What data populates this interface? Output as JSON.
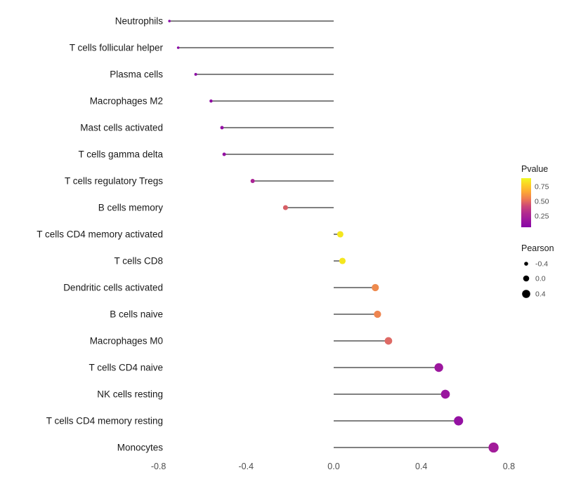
{
  "chart_data": {
    "type": "scatter",
    "subtype": "lollipop",
    "title": "",
    "xlabel": "",
    "ylabel": "",
    "xlim": [
      -0.85,
      0.85
    ],
    "baseline": 0.0,
    "grid": false,
    "x_ticks": [
      -0.8,
      -0.4,
      0.0,
      0.4,
      0.8
    ],
    "x_tick_labels": [
      "-0.8",
      "-0.4",
      "0.0",
      "0.4",
      "0.8"
    ],
    "categories": [
      "Neutrophils",
      "T cells follicular helper",
      "Plasma cells",
      "Macrophages M2",
      "Mast cells activated",
      "T cells gamma delta",
      "T cells regulatory  Tregs",
      "B cells memory",
      "T cells CD4 memory activated",
      "T cells CD8",
      "Dendritic cells activated",
      "B cells naive",
      "Macrophages M0",
      "T cells CD4 naive",
      "NK cells resting",
      "T cells CD4 memory resting",
      "Monocytes"
    ],
    "series": [
      {
        "name": "Pearson",
        "values": [
          -0.75,
          -0.71,
          -0.63,
          -0.56,
          -0.51,
          -0.5,
          -0.37,
          -0.22,
          0.03,
          0.04,
          0.19,
          0.2,
          0.25,
          0.48,
          0.51,
          0.57,
          0.73
        ]
      },
      {
        "name": "Pvalue",
        "values": [
          0.001,
          0.002,
          0.006,
          0.01,
          0.02,
          0.02,
          0.09,
          0.35,
          0.85,
          0.85,
          0.45,
          0.43,
          0.32,
          0.02,
          0.015,
          0.008,
          0.001
        ]
      }
    ],
    "point_colors": [
      "#8607a6",
      "#8a09a5",
      "#8c0ba5",
      "#900da4",
      "#930fa3",
      "#9410a2",
      "#aa2295",
      "#d65f66",
      "#f4e61e",
      "#f4e61e",
      "#ee8a4e",
      "#ee8550",
      "#de6a65",
      "#9c179e",
      "#9a159f",
      "#9411a2",
      "#a21c9a"
    ],
    "legend": {
      "color": {
        "title": "Pvalue",
        "ticks": [
          "0.75",
          "0.50",
          "0.25"
        ],
        "gradient": [
          "#f0f921",
          "#fcce25",
          "#fca636",
          "#ed7953",
          "#cc4778",
          "#b12a90",
          "#9c179e",
          "#8606a6"
        ]
      },
      "size": {
        "title": "Pearson",
        "ticks": [
          "-0.4",
          "0.0",
          "0.4"
        ],
        "tick_values": [
          -0.4,
          0.0,
          0.4
        ],
        "radii": [
          2.8,
          4.3,
          5.8
        ]
      }
    },
    "style": {
      "stem_color": "#000000",
      "legend_key_color": "#000000",
      "axis_text_color": "#4d4d4d",
      "label_color": "#1a1a1a",
      "background": "#ffffff"
    }
  }
}
